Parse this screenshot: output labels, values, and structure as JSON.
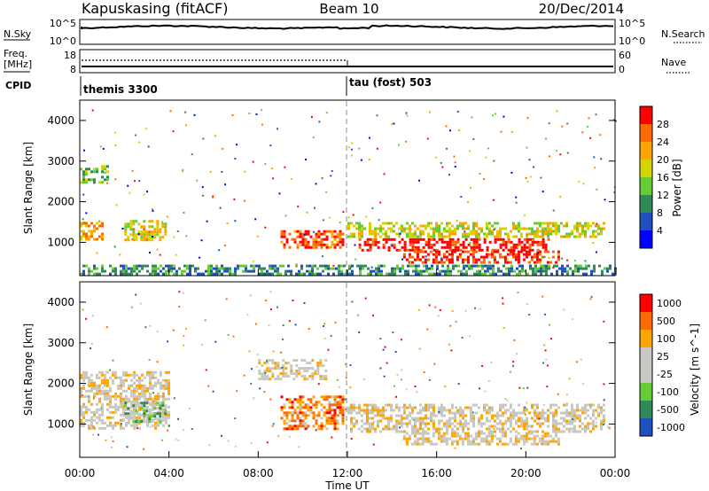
{
  "header": {
    "station": "Kapuskasing (fitACF)",
    "beam": "Beam 10",
    "date": "20/Dec/2014"
  },
  "top_panels": {
    "nsky_label": "N.Sky",
    "nsky_ticks": [
      "10^5",
      "10^0"
    ],
    "nsearch_label": "N.Search",
    "nsearch_ticks": [
      "10^5",
      "10^0"
    ],
    "freq_label_1": "Freq.",
    "freq_label_2": "[MHz]",
    "freq_ticks": [
      "18",
      "8"
    ],
    "nave_label": "Nave",
    "nave_ticks": [
      "60",
      "0"
    ],
    "cpid_label": "CPID",
    "cpid_segments": [
      {
        "name": "themis 3300",
        "start_hour": 0
      },
      {
        "name": "tau (fost) 503",
        "start_hour": 12
      }
    ]
  },
  "colors": {
    "power": [
      "#0000ff",
      "#2050c0",
      "#2e8b57",
      "#66cc33",
      "#d4d400",
      "#ffa500",
      "#ff6a00",
      "#ff0000"
    ],
    "velocity": [
      "#ff0000",
      "#ff6a00",
      "#ffa500",
      "#c8c8c0",
      "#c8c8c0",
      "#66cc33",
      "#2e8b57",
      "#2050c0"
    ]
  },
  "chart_data": [
    {
      "type": "heatmap",
      "title": "",
      "xlabel": "",
      "ylabel": "Slant Range [km]",
      "xlim": [
        0,
        24
      ],
      "ylim": [
        180,
        4500
      ],
      "yticks": [
        "1000",
        "2000",
        "3000",
        "4000"
      ],
      "colorbar": {
        "label": "Power [dB]",
        "ticks": [
          "4",
          "8",
          "12",
          "16",
          "20",
          "24",
          "28"
        ]
      },
      "bands": [
        {
          "x0": 0,
          "x1": 1.0,
          "y0": 1050,
          "y1": 1500,
          "level": 0.7
        },
        {
          "x0": 0,
          "x1": 1.2,
          "y0": 2500,
          "y1": 2900,
          "level": 0.45
        },
        {
          "x0": 2.0,
          "x1": 3.8,
          "y0": 1050,
          "y1": 1550,
          "level": 0.6
        },
        {
          "x0": 9.0,
          "x1": 11.8,
          "y0": 900,
          "y1": 1300,
          "level": 0.85
        },
        {
          "x0": 12.0,
          "x1": 23.5,
          "y0": 1150,
          "y1": 1500,
          "level": 0.55
        },
        {
          "x0": 12.5,
          "x1": 21.0,
          "y0": 800,
          "y1": 1100,
          "level": 0.95
        },
        {
          "x0": 14.5,
          "x1": 21.5,
          "y0": 500,
          "y1": 800,
          "level": 0.9
        },
        {
          "x0": 0,
          "x1": 24,
          "y0": 250,
          "y1": 450,
          "level": 0.3
        }
      ]
    },
    {
      "type": "heatmap",
      "title": "",
      "xlabel": "Time UT",
      "ylabel": "Slant Range [km]",
      "xlim": [
        0,
        24
      ],
      "ylim": [
        180,
        4500
      ],
      "xticks": [
        "00:00",
        "04:00",
        "08:00",
        "12:00",
        "16:00",
        "20:00",
        "00:00"
      ],
      "yticks": [
        "1000",
        "2000",
        "3000",
        "4000"
      ],
      "colorbar": {
        "label": "Velocity [m s^-1]",
        "ticks": [
          "1000",
          "500",
          "100",
          "25",
          "-25",
          "-100",
          "-500",
          "-1000"
        ]
      },
      "bands": [
        {
          "x0": 0,
          "x1": 4.0,
          "y0": 900,
          "y1": 2300,
          "level": 0.45
        },
        {
          "x0": 2.0,
          "x1": 3.8,
          "y0": 1050,
          "y1": 1550,
          "level": 0.65
        },
        {
          "x0": 9.0,
          "x1": 11.8,
          "y0": 900,
          "y1": 1700,
          "level": 0.25
        },
        {
          "x0": 12.0,
          "x1": 23.5,
          "y0": 800,
          "y1": 1500,
          "level": 0.45
        },
        {
          "x0": 14.5,
          "x1": 21.5,
          "y0": 500,
          "y1": 800,
          "level": 0.45
        },
        {
          "x0": 8.0,
          "x1": 11.0,
          "y0": 2100,
          "y1": 2600,
          "level": 0.45
        }
      ]
    }
  ]
}
